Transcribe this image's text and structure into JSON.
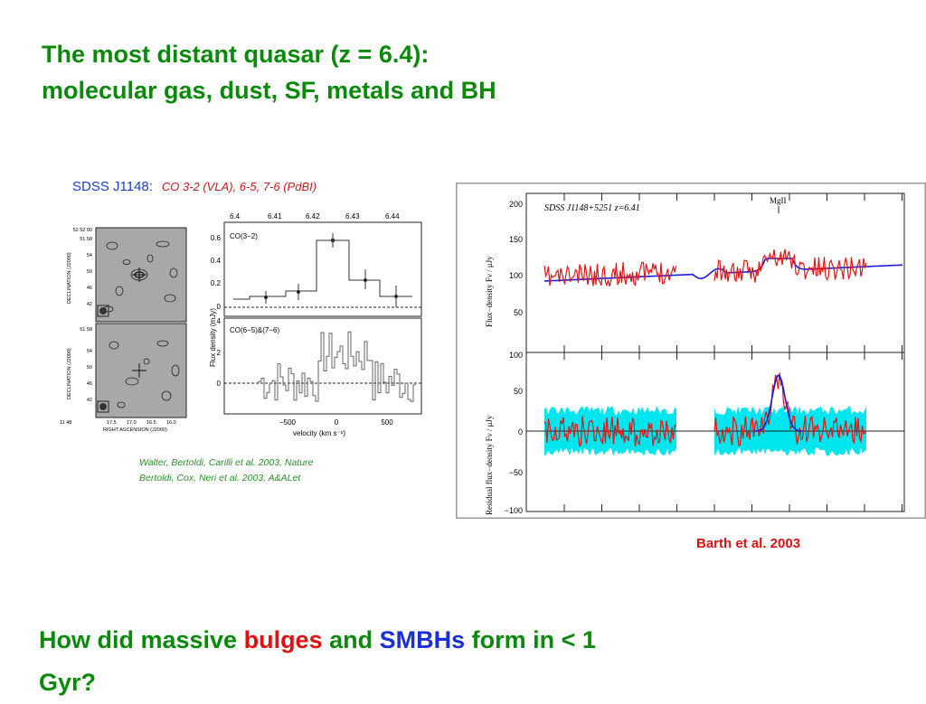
{
  "title": {
    "line1": "The most distant quasar (z = 6.4):",
    "line2": "molecular gas, dust, SF, metals and BH"
  },
  "left_figure": {
    "header_source": "SDSS J1148:",
    "header_lines": "CO 3-2 (VLA), 6-5, 7-6 (PdBI)",
    "maps": {
      "ylabel": "DECLINATION (J2000)",
      "xlabel": "RIGHT ASCENSION (J2000)",
      "top_ticks": [
        "52 52 00",
        "51 58",
        "54",
        "50",
        "46",
        "42"
      ],
      "bottom_ticks": [
        "51 58",
        "54",
        "50",
        "46",
        "42"
      ],
      "bottom_first": "11 48",
      "x_ticks": [
        "17.5",
        "17.0",
        "16.5",
        "16.0"
      ]
    },
    "spectra": {
      "top_axis": [
        "6.4",
        "6.41",
        "6.42",
        "6.43",
        "6.44"
      ],
      "panel1_label": "CO(3−2)",
      "panel1_yticks": [
        "0.6",
        "0.4",
        "0.2",
        "0"
      ],
      "panel2_label": "CO(6−5)&(7−6)",
      "panel2_yticks": [
        "4",
        "2",
        "0"
      ],
      "ylabel": "Flux density (mJy)",
      "xlabel": "velocity (km s⁻¹)",
      "x_ticks": [
        "−500",
        "0",
        "500"
      ]
    },
    "references": [
      "Walter, Bertoldi, Carilli et al. 2003, Nature",
      "Bertoldi, Cox, Neri et al. 2003, A&ALet"
    ]
  },
  "right_figure": {
    "label": "SDSS J1148+5251  z=6.41",
    "line_label": "MgII",
    "top_ylabel": "Flux−density Fν / μJy",
    "bottom_ylabel": "Residual flux−density Fν / μJy",
    "top_yticks": [
      "200",
      "150",
      "100",
      "50"
    ],
    "bottom_yticks": [
      "100",
      "50",
      "0",
      "−50",
      "−100"
    ],
    "colors": {
      "data": "#e01515",
      "model": "#1a1adc",
      "band": "#00e6ee"
    }
  },
  "caption": "Barth et al. 2003",
  "question": {
    "part1": "How did massive ",
    "bulges": "bulges",
    "part2": " and ",
    "smbhs": "SMBHs",
    "part3": " form in < 1",
    "part4": "Gyr?"
  }
}
